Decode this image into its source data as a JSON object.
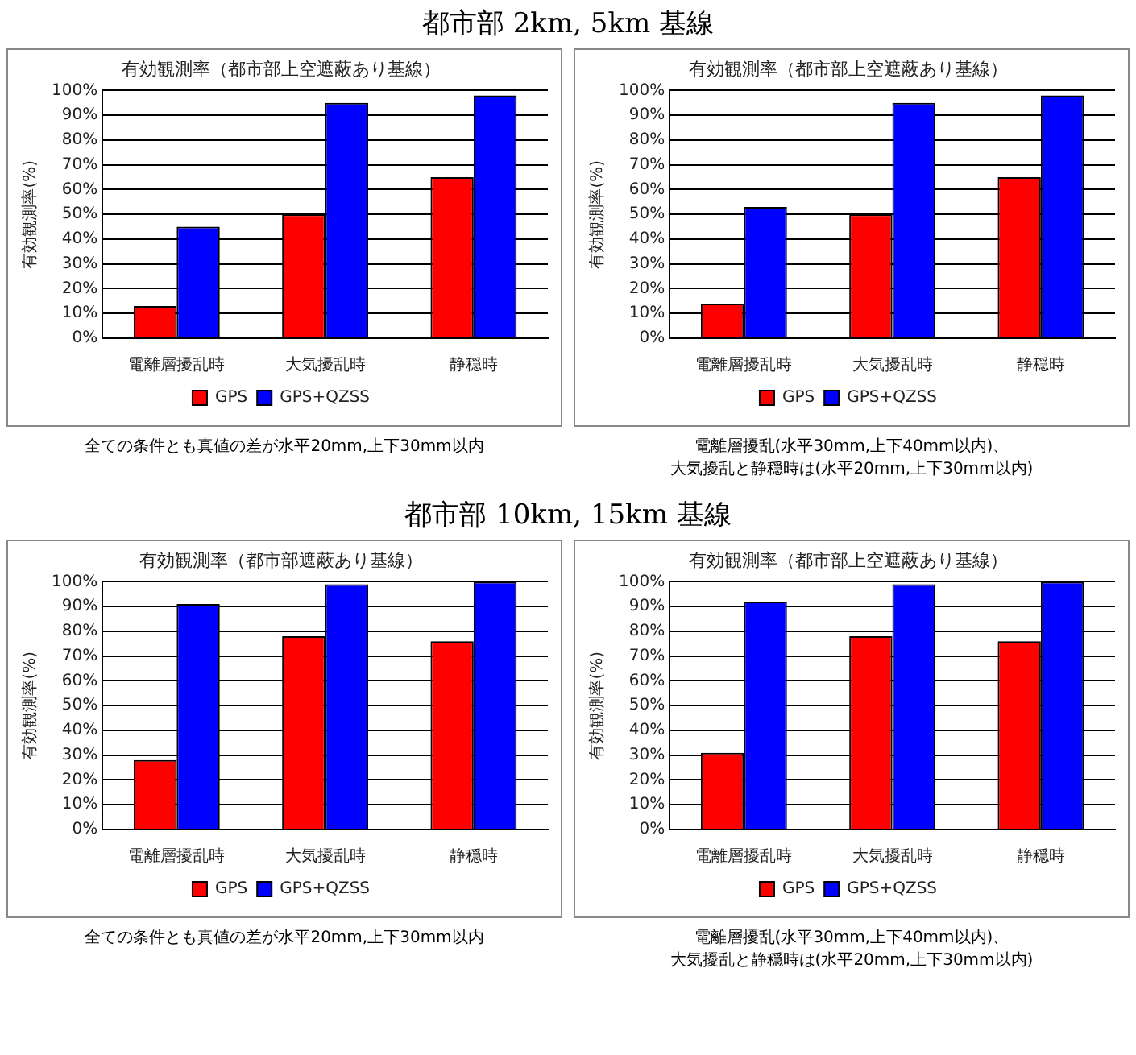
{
  "chart_data": [
    {
      "type": "bar",
      "subtitle": "都市部 2km, 5km 基線",
      "title": "有効観測率（都市部上空遮蔽あり基線）",
      "ylabel": "有効観測率(%)",
      "categories": [
        "電離層擾乱時",
        "大気擾乱時",
        "静穏時"
      ],
      "series": [
        {
          "name": "GPS",
          "color": "#ff0000",
          "values": [
            13,
            50,
            65
          ]
        },
        {
          "name": "GPS+QZSS",
          "color": "#0000ff",
          "values": [
            45,
            95,
            98
          ]
        }
      ],
      "ylim": [
        0,
        100
      ],
      "yticks": [
        {
          "value": 0,
          "label": "0%"
        },
        {
          "value": 10,
          "label": "10%"
        },
        {
          "value": 20,
          "label": "20%"
        },
        {
          "value": 30,
          "label": "30%"
        },
        {
          "value": 40,
          "label": "40%"
        },
        {
          "value": 50,
          "label": "50%"
        },
        {
          "value": 60,
          "label": "60%"
        },
        {
          "value": 70,
          "label": "70%"
        },
        {
          "value": 80,
          "label": "80%"
        },
        {
          "value": 90,
          "label": "90%"
        },
        {
          "value": 100,
          "label": "100%"
        }
      ],
      "grid": "y",
      "legend": "bottom",
      "annotations": [
        "全ての条件とも真値の差が水平20mm,上下30mm以内"
      ]
    },
    {
      "type": "bar",
      "title": "有効観測率（都市部上空遮蔽あり基線）",
      "ylabel": "有効観測率(%)",
      "categories": [
        "電離層擾乱時",
        "大気擾乱時",
        "静穏時"
      ],
      "series": [
        {
          "name": "GPS",
          "color": "#ff0000",
          "values": [
            14,
            50,
            65
          ]
        },
        {
          "name": "GPS+QZSS",
          "color": "#0000ff",
          "values": [
            53,
            95,
            98
          ]
        }
      ],
      "ylim": [
        0,
        100
      ],
      "yticks": [
        {
          "value": 0,
          "label": "0%"
        },
        {
          "value": 10,
          "label": "10%"
        },
        {
          "value": 20,
          "label": "20%"
        },
        {
          "value": 30,
          "label": "30%"
        },
        {
          "value": 40,
          "label": "40%"
        },
        {
          "value": 50,
          "label": "50%"
        },
        {
          "value": 60,
          "label": "60%"
        },
        {
          "value": 70,
          "label": "70%"
        },
        {
          "value": 80,
          "label": "80%"
        },
        {
          "value": 90,
          "label": "90%"
        },
        {
          "value": 100,
          "label": "100%"
        }
      ],
      "grid": "y",
      "legend": "bottom",
      "annotations": [
        "電離層擾乱(水平30mm,上下40mm以内)、",
        "大気擾乱と静穏時は(水平20mm,上下30mm以内)"
      ]
    },
    {
      "type": "bar",
      "subtitle": "都市部 10km, 15km 基線",
      "title": "有効観測率（都市部遮蔽あり基線）",
      "ylabel": "有効観測率(%)",
      "categories": [
        "電離層擾乱時",
        "大気擾乱時",
        "静穏時"
      ],
      "series": [
        {
          "name": "GPS",
          "color": "#ff0000",
          "values": [
            28,
            78,
            76
          ]
        },
        {
          "name": "GPS+QZSS",
          "color": "#0000ff",
          "values": [
            91,
            99,
            100
          ]
        }
      ],
      "ylim": [
        0,
        100
      ],
      "yticks": [
        {
          "value": 0,
          "label": "0%"
        },
        {
          "value": 10,
          "label": "10%"
        },
        {
          "value": 20,
          "label": "20%"
        },
        {
          "value": 30,
          "label": "30%"
        },
        {
          "value": 40,
          "label": "40%"
        },
        {
          "value": 50,
          "label": "50%"
        },
        {
          "value": 60,
          "label": "60%"
        },
        {
          "value": 70,
          "label": "70%"
        },
        {
          "value": 80,
          "label": "80%"
        },
        {
          "value": 90,
          "label": "90%"
        },
        {
          "value": 100,
          "label": "100%"
        }
      ],
      "grid": "y",
      "legend": "bottom",
      "annotations": [
        "全ての条件とも真値の差が水平20mm,上下30mm以内"
      ]
    },
    {
      "type": "bar",
      "title": "有効観測率（都市部上空遮蔽あり基線）",
      "ylabel": "有効観測率(%)",
      "categories": [
        "電離層擾乱時",
        "大気擾乱時",
        "静穏時"
      ],
      "series": [
        {
          "name": "GPS",
          "color": "#ff0000",
          "values": [
            31,
            78,
            76
          ]
        },
        {
          "name": "GPS+QZSS",
          "color": "#0000ff",
          "values": [
            92,
            99,
            100
          ]
        }
      ],
      "ylim": [
        0,
        100
      ],
      "yticks": [
        {
          "value": 0,
          "label": "0%"
        },
        {
          "value": 10,
          "label": "10%"
        },
        {
          "value": 20,
          "label": "20%"
        },
        {
          "value": 30,
          "label": "30%"
        },
        {
          "value": 40,
          "label": "40%"
        },
        {
          "value": 50,
          "label": "50%"
        },
        {
          "value": 60,
          "label": "60%"
        },
        {
          "value": 70,
          "label": "70%"
        },
        {
          "value": 80,
          "label": "80%"
        },
        {
          "value": 90,
          "label": "90%"
        },
        {
          "value": 100,
          "label": "100%"
        }
      ],
      "grid": "y",
      "legend": "bottom",
      "annotations": [
        "電離層擾乱(水平30mm,上下40mm以内)、",
        "大気擾乱と静穏時は(水平20mm,上下30mm以内)"
      ]
    }
  ]
}
